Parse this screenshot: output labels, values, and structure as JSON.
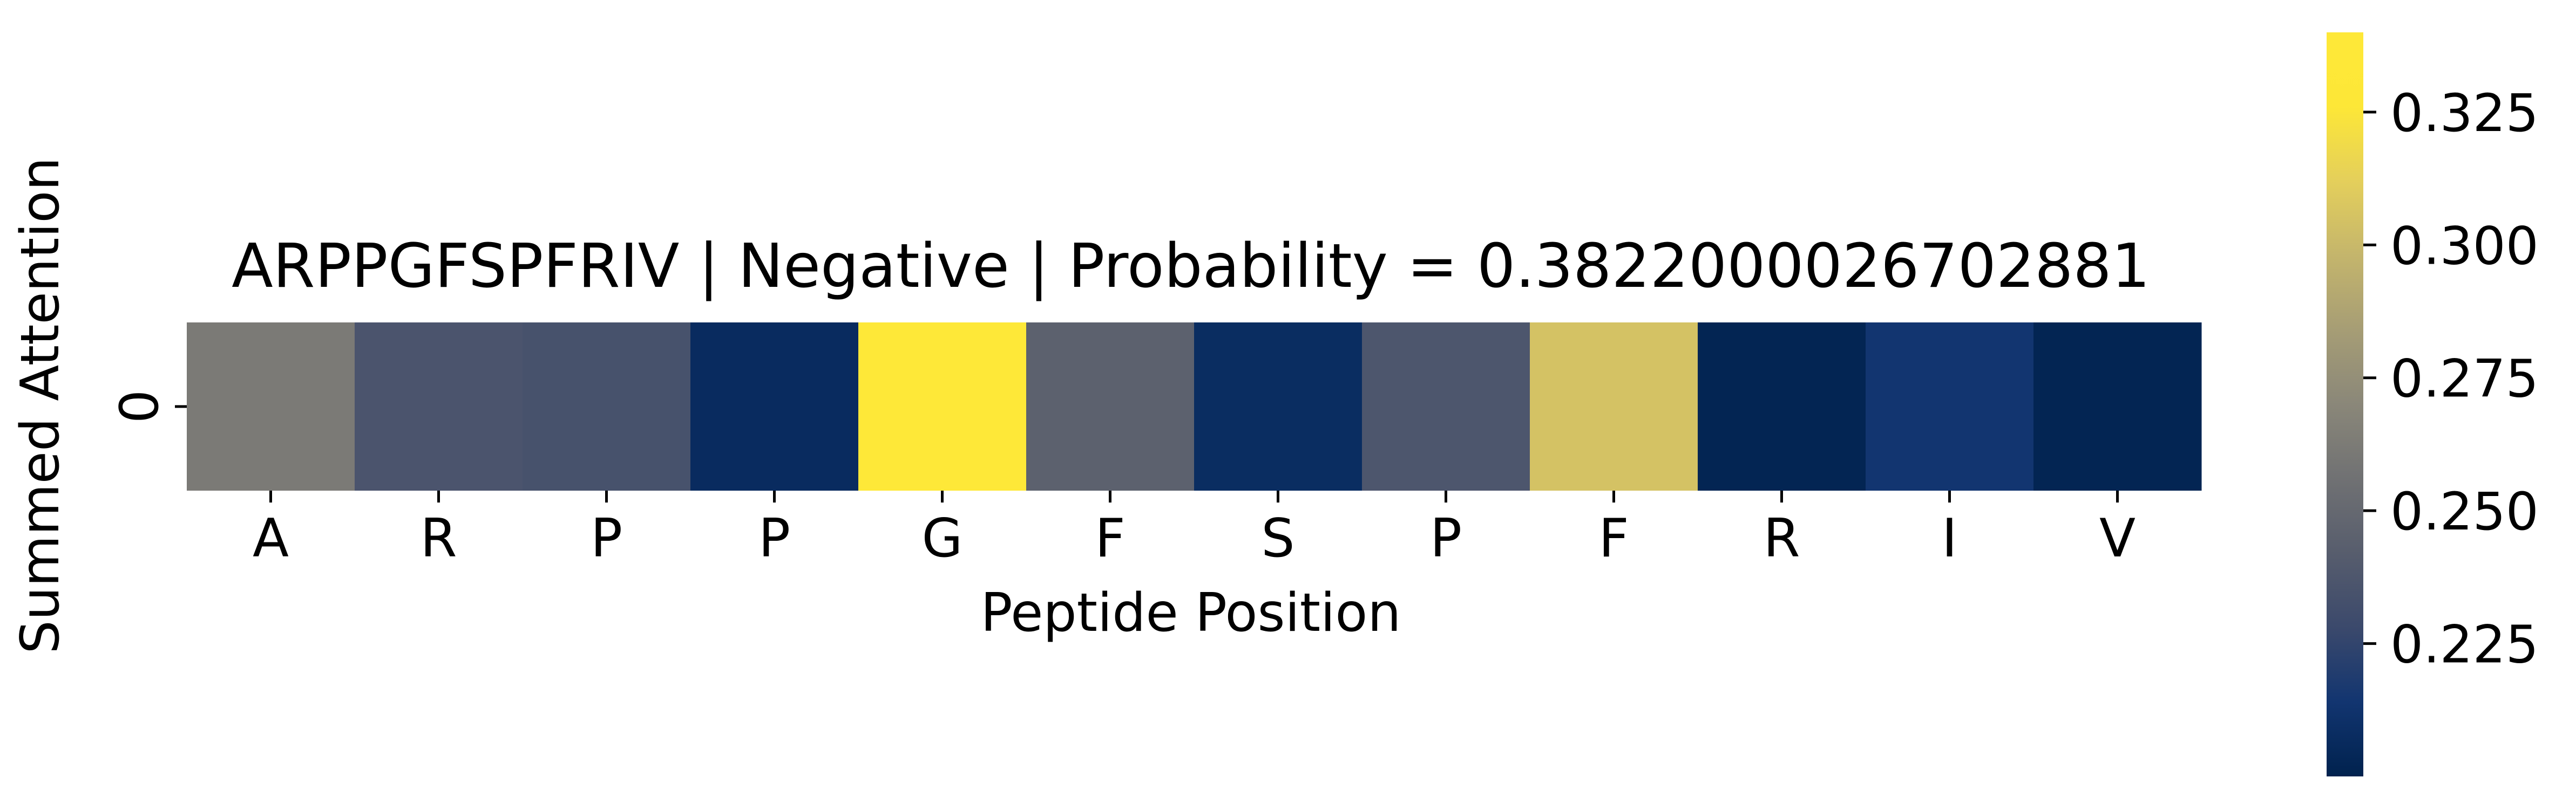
{
  "chart_data": {
    "type": "heatmap",
    "title": "ARPPGFSPFRIV | Negative | Probability = 0.3822000026702881",
    "xlabel": "Peptide Position",
    "ylabel": "Summed Attention",
    "x_categories": [
      "A",
      "R",
      "P",
      "P",
      "G",
      "F",
      "S",
      "P",
      "F",
      "R",
      "I",
      "V"
    ],
    "y_categories": [
      "0"
    ],
    "values": [
      [
        0.262,
        0.236,
        0.234,
        0.207,
        0.34,
        0.245,
        0.208,
        0.237,
        0.305,
        0.202,
        0.214,
        0.202
      ]
    ],
    "colormap": "cividis",
    "colorbar": {
      "vmin": 0.2,
      "vmax": 0.34,
      "ticks": [
        0.225,
        0.25,
        0.275,
        0.3,
        0.325
      ],
      "tick_labels": [
        "0.225",
        "0.250",
        "0.275",
        "0.300",
        "0.325"
      ]
    }
  }
}
